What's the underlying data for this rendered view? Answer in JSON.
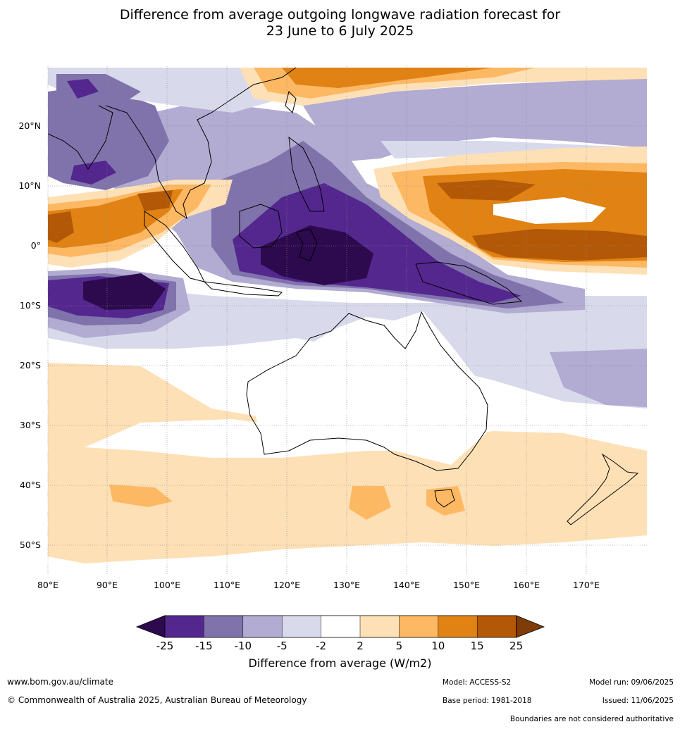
{
  "title_line1": "Difference from average outgoing longwave radiation forecast for",
  "title_line2": "23 June to 6 July 2025",
  "map": {
    "lon_ticks": [
      "80°E",
      "90°E",
      "100°E",
      "110°E",
      "120°E",
      "130°E",
      "140°E",
      "150°E",
      "160°E",
      "170°E"
    ],
    "lat_ticks": [
      "20°N",
      "10°N",
      "0°",
      "10°S",
      "20°S",
      "30°S",
      "40°S",
      "50°S"
    ]
  },
  "colorbar": {
    "title": "Difference from average (W/m2)",
    "ticks": [
      "-25",
      "-15",
      "-10",
      "-5",
      "-2",
      "2",
      "5",
      "10",
      "15",
      "25"
    ],
    "colors": {
      "lt_minus25": "#2d0a4e",
      "minus25_minus15": "#54278f",
      "minus15_minus10": "#8073ac",
      "minus10_minus5": "#b2abd2",
      "minus5_minus2": "#d8daeb",
      "minus2_2": "#ffffff",
      "2_5": "#fee0b6",
      "5_10": "#fdb863",
      "10_15": "#e08214",
      "15_25": "#b35806",
      "gt_25": "#7f3b08"
    }
  },
  "footer": {
    "website": "www.bom.gov.au/climate",
    "copyright": "© Commonwealth of Australia 2025, Australian Bureau of Meteorology",
    "model": "Model: ACCESS-S2",
    "base_period": "Base period: 1981-2018",
    "model_run": "Model run: 09/06/2025",
    "issued": "Issued: 11/06/2025",
    "disclaimer": "Boundaries are not considered authoritative"
  }
}
